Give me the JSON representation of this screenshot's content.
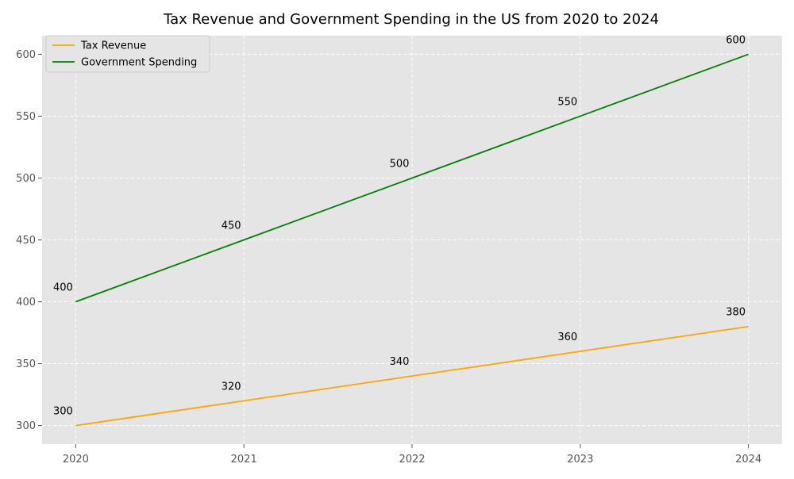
{
  "chart_data": {
    "type": "line",
    "title": "Tax Revenue and Government Spending in the US from 2020 to 2024",
    "xlabel": "",
    "ylabel": "",
    "x": [
      2020,
      2021,
      2022,
      2023,
      2024
    ],
    "x_ticks": [
      "2020",
      "2021",
      "2022",
      "2023",
      "2024"
    ],
    "y_ticks": [
      300,
      350,
      400,
      450,
      500,
      550,
      600
    ],
    "xlim": [
      2019.8,
      2024.2
    ],
    "ylim": [
      285,
      615
    ],
    "grid": true,
    "legend_position": "top-left",
    "series": [
      {
        "name": "Tax Revenue",
        "color": "#FFA500",
        "values": [
          300,
          320,
          340,
          360,
          380
        ]
      },
      {
        "name": "Government Spending",
        "color": "#008000",
        "values": [
          400,
          450,
          500,
          550,
          600
        ]
      }
    ],
    "data_labels": true
  }
}
